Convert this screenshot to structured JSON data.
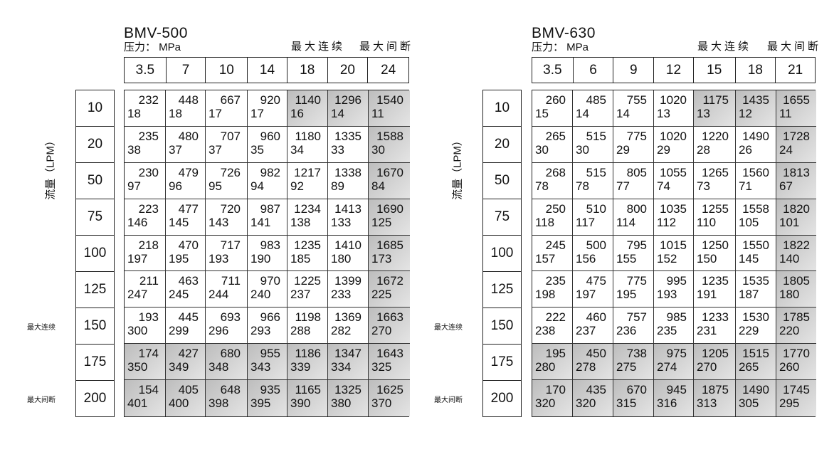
{
  "axis_label": "流量（LPM）",
  "pressure_label": "压力： MPa",
  "legend_continuous": "最大连续",
  "legend_intermittent": "最大间断",
  "flow_values": [
    "10",
    "20",
    "50",
    "75",
    "100",
    "125",
    "150",
    "175",
    "200"
  ],
  "row_markers": {
    "continuous": "最大连续",
    "intermittent": "最大间断"
  },
  "tables": [
    {
      "model": "BMV-500",
      "pressures": [
        "3.5",
        "7",
        "10",
        "14",
        "18",
        "20",
        "24"
      ],
      "rows": [
        [
          [
            "232",
            "18"
          ],
          [
            "448",
            "18"
          ],
          [
            "667",
            "17"
          ],
          [
            "920",
            "17"
          ],
          [
            "1140",
            "16"
          ],
          [
            "1296",
            "14"
          ],
          [
            "1540",
            "11"
          ]
        ],
        [
          [
            "235",
            "38"
          ],
          [
            "480",
            "37"
          ],
          [
            "707",
            "37"
          ],
          [
            "960",
            "35"
          ],
          [
            "1180",
            "34"
          ],
          [
            "1335",
            "33"
          ],
          [
            "1588",
            "30"
          ]
        ],
        [
          [
            "230",
            "97"
          ],
          [
            "479",
            "96"
          ],
          [
            "726",
            "95"
          ],
          [
            "982",
            "94"
          ],
          [
            "1217",
            "92"
          ],
          [
            "1338",
            "89"
          ],
          [
            "1670",
            "84"
          ]
        ],
        [
          [
            "223",
            "146"
          ],
          [
            "477",
            "145"
          ],
          [
            "720",
            "143"
          ],
          [
            "987",
            "141"
          ],
          [
            "1234",
            "138"
          ],
          [
            "1413",
            "133"
          ],
          [
            "1690",
            "125"
          ]
        ],
        [
          [
            "218",
            "197"
          ],
          [
            "470",
            "195"
          ],
          [
            "717",
            "193"
          ],
          [
            "983",
            "190"
          ],
          [
            "1235",
            "185"
          ],
          [
            "1410",
            "180"
          ],
          [
            "1685",
            "173"
          ]
        ],
        [
          [
            "211",
            "247"
          ],
          [
            "463",
            "245"
          ],
          [
            "711",
            "244"
          ],
          [
            "970",
            "240"
          ],
          [
            "1225",
            "237"
          ],
          [
            "1399",
            "233"
          ],
          [
            "1672",
            "225"
          ]
        ],
        [
          [
            "193",
            "300"
          ],
          [
            "445",
            "299"
          ],
          [
            "693",
            "296"
          ],
          [
            "966",
            "293"
          ],
          [
            "1198",
            "288"
          ],
          [
            "1369",
            "282"
          ],
          [
            "1663",
            "270"
          ]
        ],
        [
          [
            "174",
            "350"
          ],
          [
            "427",
            "349"
          ],
          [
            "680",
            "348"
          ],
          [
            "955",
            "343"
          ],
          [
            "1186",
            "339"
          ],
          [
            "1347",
            "334"
          ],
          [
            "1643",
            "325"
          ]
        ],
        [
          [
            "154",
            "401"
          ],
          [
            "405",
            "400"
          ],
          [
            "648",
            "398"
          ],
          [
            "935",
            "395"
          ],
          [
            "1165",
            "390"
          ],
          [
            "1325",
            "380"
          ],
          [
            "1625",
            "370"
          ]
        ]
      ]
    },
    {
      "model": "BMV-630",
      "pressures": [
        "3.5",
        "6",
        "9",
        "12",
        "15",
        "18",
        "21"
      ],
      "rows": [
        [
          [
            "260",
            "15"
          ],
          [
            "485",
            "14"
          ],
          [
            "755",
            "14"
          ],
          [
            "1020",
            "13"
          ],
          [
            "1175",
            "13"
          ],
          [
            "1435",
            "12"
          ],
          [
            "1655",
            "11"
          ]
        ],
        [
          [
            "265",
            "30"
          ],
          [
            "515",
            "30"
          ],
          [
            "775",
            "29"
          ],
          [
            "1020",
            "29"
          ],
          [
            "1220",
            "28"
          ],
          [
            "1490",
            "26"
          ],
          [
            "1728",
            "24"
          ]
        ],
        [
          [
            "268",
            "78"
          ],
          [
            "515",
            "78"
          ],
          [
            "805",
            "77"
          ],
          [
            "1055",
            "74"
          ],
          [
            "1265",
            "73"
          ],
          [
            "1560",
            "71"
          ],
          [
            "1813",
            "67"
          ]
        ],
        [
          [
            "250",
            "118"
          ],
          [
            "510",
            "117"
          ],
          [
            "800",
            "114"
          ],
          [
            "1035",
            "112"
          ],
          [
            "1255",
            "110"
          ],
          [
            "1558",
            "105"
          ],
          [
            "1820",
            "101"
          ]
        ],
        [
          [
            "245",
            "157"
          ],
          [
            "500",
            "156"
          ],
          [
            "795",
            "155"
          ],
          [
            "1015",
            "152"
          ],
          [
            "1250",
            "150"
          ],
          [
            "1550",
            "145"
          ],
          [
            "1822",
            "140"
          ]
        ],
        [
          [
            "235",
            "198"
          ],
          [
            "475",
            "197"
          ],
          [
            "775",
            "195"
          ],
          [
            "995",
            "193"
          ],
          [
            "1235",
            "191"
          ],
          [
            "1535",
            "187"
          ],
          [
            "1805",
            "180"
          ]
        ],
        [
          [
            "222",
            "238"
          ],
          [
            "460",
            "237"
          ],
          [
            "757",
            "236"
          ],
          [
            "985",
            "235"
          ],
          [
            "1233",
            "231"
          ],
          [
            "1530",
            "229"
          ],
          [
            "1785",
            "220"
          ]
        ],
        [
          [
            "195",
            "280"
          ],
          [
            "450",
            "278"
          ],
          [
            "738",
            "275"
          ],
          [
            "975",
            "274"
          ],
          [
            "1205",
            "270"
          ],
          [
            "1515",
            "265"
          ],
          [
            "1770",
            "260"
          ]
        ],
        [
          [
            "170",
            "320"
          ],
          [
            "435",
            "320"
          ],
          [
            "670",
            "315"
          ],
          [
            "945",
            "316"
          ],
          [
            "1875",
            "313"
          ],
          [
            "1490",
            "305"
          ],
          [
            "1745",
            "295"
          ]
        ]
      ]
    }
  ],
  "shade_color": "#c4c4c4"
}
